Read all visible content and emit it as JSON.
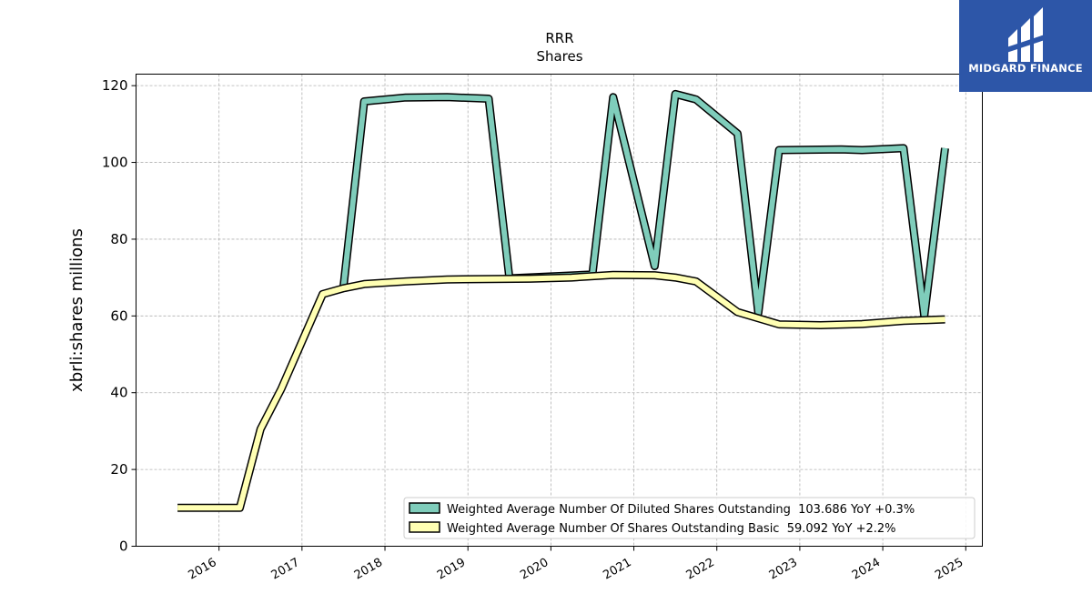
{
  "brand": {
    "name": "MIDGARD FINANCE",
    "icon": "midgard-finance-logo-icon",
    "color": "#2d56a8"
  },
  "chart_data": {
    "type": "line",
    "title": "RRR",
    "subtitle": "Shares",
    "xlabel": "",
    "ylabel": "xbrli:shares millions",
    "xlim": [
      2015.0,
      2025.2
    ],
    "ylim": [
      0,
      123
    ],
    "x_ticks": [
      "2016",
      "2017",
      "2018",
      "2019",
      "2020",
      "2021",
      "2022",
      "2023",
      "2024",
      "2025"
    ],
    "y_ticks": [
      0,
      20,
      40,
      60,
      80,
      100,
      120
    ],
    "grid": true,
    "legend_position": "lower-right",
    "series": [
      {
        "name": "Weighted Average Number Of Diluted Shares Outstanding  103.686 YoY +0.3%",
        "color": "#7fcdbb",
        "points": [
          [
            "2017-07-01",
            67.5
          ],
          [
            "2017-10-01",
            115.9
          ],
          [
            "2018-04-01",
            116.9
          ],
          [
            "2018-10-01",
            117.0
          ],
          [
            "2019-04-01",
            116.6
          ],
          [
            "2019-07-01",
            69.8
          ],
          [
            "2020-07-01",
            70.8
          ],
          [
            "2020-10-01",
            117.0
          ],
          [
            "2021-04-01",
            73.0
          ],
          [
            "2021-07-01",
            117.8
          ],
          [
            "2021-10-01",
            116.4
          ],
          [
            "2022-04-01",
            107.5
          ],
          [
            "2022-07-01",
            60.8
          ],
          [
            "2022-10-01",
            103.2
          ],
          [
            "2023-07-01",
            103.4
          ],
          [
            "2023-10-01",
            103.2
          ],
          [
            "2024-04-01",
            103.7
          ],
          [
            "2024-07-01",
            60.0
          ],
          [
            "2024-10-01",
            103.7
          ]
        ]
      },
      {
        "name": "Weighted Average Number Of Shares Outstanding Basic  59.092 YoY +2.2%",
        "color": "#ffffb3",
        "points": [
          [
            "2015-07-01",
            10.0
          ],
          [
            "2016-04-01",
            10.0
          ],
          [
            "2016-07-01",
            30.5
          ],
          [
            "2016-10-01",
            41.0
          ],
          [
            "2017-04-01",
            65.7
          ],
          [
            "2017-07-01",
            67.2
          ],
          [
            "2017-10-01",
            68.3
          ],
          [
            "2018-04-01",
            69.0
          ],
          [
            "2018-10-01",
            69.5
          ],
          [
            "2019-10-01",
            69.7
          ],
          [
            "2020-04-01",
            70.0
          ],
          [
            "2020-10-01",
            70.7
          ],
          [
            "2021-04-01",
            70.6
          ],
          [
            "2021-07-01",
            70.0
          ],
          [
            "2021-10-01",
            69.0
          ],
          [
            "2022-04-01",
            61.0
          ],
          [
            "2022-10-01",
            57.8
          ],
          [
            "2023-04-01",
            57.6
          ],
          [
            "2023-10-01",
            57.9
          ],
          [
            "2024-04-01",
            58.7
          ],
          [
            "2024-10-01",
            59.1
          ]
        ]
      }
    ]
  }
}
